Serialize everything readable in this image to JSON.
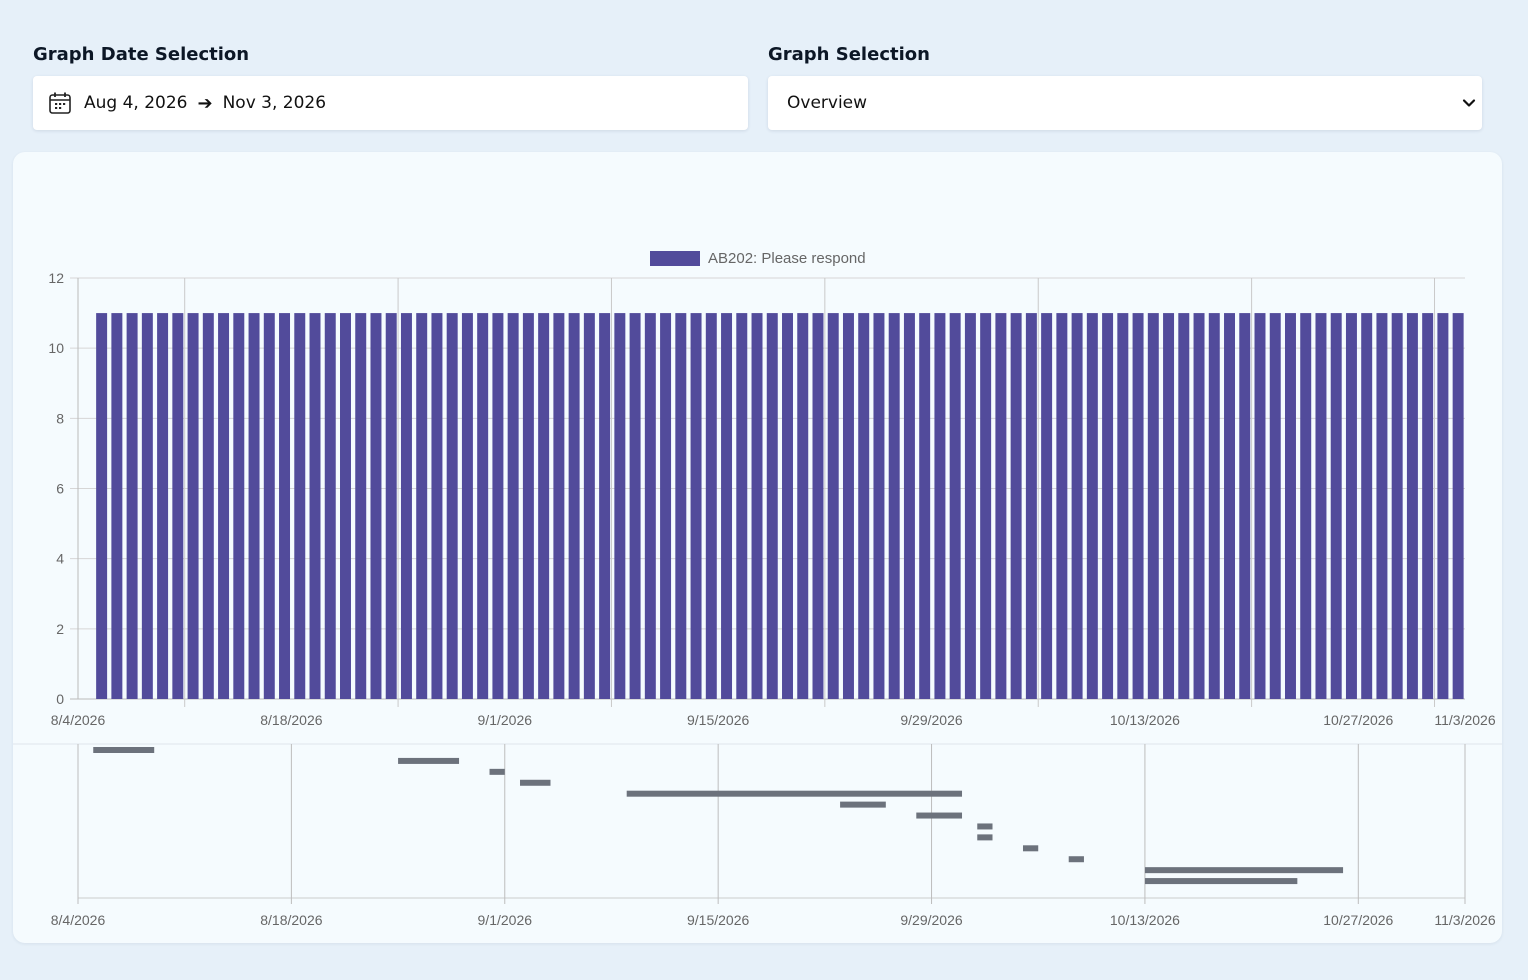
{
  "header": {
    "date_label": "Graph Date Selection",
    "graph_label": "Graph Selection"
  },
  "date_range": {
    "start": "Aug 4, 2026",
    "arrow": "➔",
    "end": "Nov 3, 2026",
    "icon": "calendar-icon"
  },
  "graph_select": {
    "value": "Overview",
    "icon": "chevron-down-icon"
  },
  "colors": {
    "bar": "#524b9b",
    "gantt": "#6c727c",
    "grid": "#cccccc"
  },
  "chart_data": {
    "type": "bar",
    "series": [
      {
        "name": "AB202: Please respond",
        "value_per_day": 11
      }
    ],
    "x_range": [
      "8/4/2026",
      "11/3/2026"
    ],
    "bar_start": "8/6/2026",
    "bar_end": "11/3/2026",
    "ylim": [
      0,
      12
    ],
    "y_ticks": [
      0,
      2,
      4,
      6,
      8,
      10,
      12
    ],
    "x_tick_labels": [
      "8/4/2026",
      "8/18/2026",
      "9/1/2026",
      "9/15/2026",
      "9/29/2026",
      "10/13/2026",
      "10/27/2026",
      "11/3/2026"
    ],
    "legend_position": "top-center",
    "timeline": {
      "x_tick_labels": [
        "8/4/2026",
        "8/18/2026",
        "9/1/2026",
        "9/15/2026",
        "9/29/2026",
        "10/13/2026",
        "10/27/2026",
        "11/3/2026"
      ],
      "segments": [
        {
          "start": "8/5/2026",
          "end": "8/9/2026"
        },
        {
          "start": "8/25/2026",
          "end": "8/29/2026"
        },
        {
          "start": "8/31/2026",
          "end": "9/1/2026"
        },
        {
          "start": "9/2/2026",
          "end": "9/4/2026"
        },
        {
          "start": "9/9/2026",
          "end": "10/1/2026"
        },
        {
          "start": "9/23/2026",
          "end": "9/26/2026"
        },
        {
          "start": "9/28/2026",
          "end": "10/1/2026"
        },
        {
          "start": "10/2/2026",
          "end": "10/3/2026"
        },
        {
          "start": "10/2/2026",
          "end": "10/3/2026"
        },
        {
          "start": "10/5/2026",
          "end": "10/6/2026"
        },
        {
          "start": "10/8/2026",
          "end": "10/9/2026"
        },
        {
          "start": "10/13/2026",
          "end": "10/26/2026"
        },
        {
          "start": "10/13/2026",
          "end": "10/23/2026"
        }
      ]
    }
  }
}
